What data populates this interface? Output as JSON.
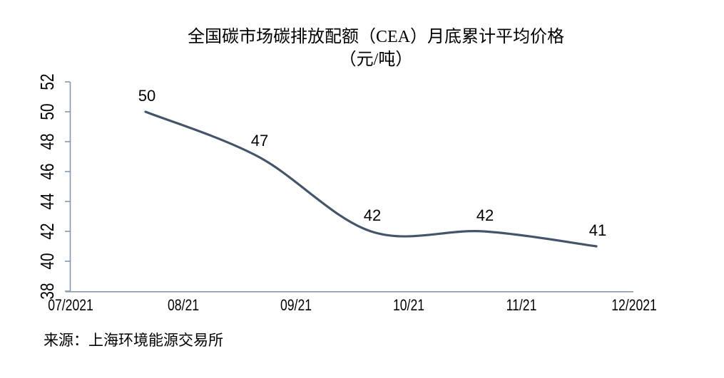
{
  "chart_data": {
    "type": "line",
    "title": "全国碳市场碳排放配额（CEA）月底累计平均价格",
    "subtitle": "（元/吨）",
    "source": "来源：上海环境能源交易所",
    "x_tick_labels": [
      "07/2021",
      "08/21",
      "09/21",
      "10/21",
      "11/21",
      "12/2021"
    ],
    "y_tick_labels": [
      "38",
      "40",
      "42",
      "44",
      "46",
      "48",
      "50",
      "52"
    ],
    "ylim": [
      38,
      52
    ],
    "y_tick_step": 2,
    "series": [
      {
        "values": [
          50,
          47,
          42,
          42,
          41
        ],
        "point_labels": [
          "50",
          "47",
          "42",
          "42",
          "41"
        ],
        "smoothed": true
      }
    ],
    "line_color": "#44546A",
    "axis_color": "#8497B0",
    "label_color": "#000000",
    "grid": false,
    "legend": "none"
  }
}
